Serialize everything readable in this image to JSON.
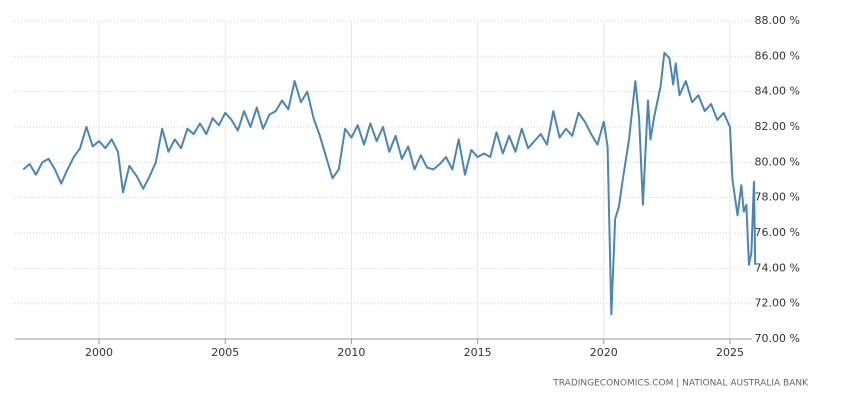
{
  "chart_data": {
    "type": "line",
    "source": "TRADINGECONOMICS.COM  |  NATIONAL AUSTRALIA BANK",
    "x": [
      1997.0,
      1997.25,
      1997.5,
      1997.75,
      1998.0,
      1998.25,
      1998.5,
      1998.75,
      1999.0,
      1999.25,
      1999.5,
      1999.75,
      2000.0,
      2000.25,
      2000.5,
      2000.75,
      2000.95,
      2001.2,
      2001.5,
      2001.75,
      2002.0,
      2002.25,
      2002.5,
      2002.75,
      2003.0,
      2003.25,
      2003.5,
      2003.75,
      2004.0,
      2004.25,
      2004.5,
      2004.75,
      2005.0,
      2005.25,
      2005.5,
      2005.75,
      2006.0,
      2006.25,
      2006.5,
      2006.75,
      2007.0,
      2007.25,
      2007.5,
      2007.75,
      2008.0,
      2008.25,
      2008.5,
      2008.75,
      2009.0,
      2009.25,
      2009.5,
      2009.75,
      2010.0,
      2010.25,
      2010.5,
      2010.75,
      2011.0,
      2011.25,
      2011.5,
      2011.75,
      2012.0,
      2012.25,
      2012.5,
      2012.75,
      2013.0,
      2013.25,
      2013.5,
      2013.75,
      2014.0,
      2014.25,
      2014.5,
      2014.75,
      2015.0,
      2015.25,
      2015.5,
      2015.75,
      2016.0,
      2016.25,
      2016.5,
      2016.75,
      2017.0,
      2017.25,
      2017.5,
      2017.75,
      2018.0,
      2018.25,
      2018.5,
      2018.75,
      2019.0,
      2019.25,
      2019.5,
      2019.75,
      2020.0,
      2020.15,
      2020.3,
      2020.45,
      2020.6,
      2020.75,
      2021.0,
      2021.25,
      2021.4,
      2021.55,
      2021.75,
      2021.85,
      2022.0,
      2022.25,
      2022.4,
      2022.6,
      2022.75,
      2022.85,
      2023.0,
      2023.25,
      2023.5,
      2023.75,
      2024.0,
      2024.25,
      2024.5,
      2024.75,
      2025.0,
      2025.1,
      2025.3,
      2025.45,
      2025.55,
      2025.65,
      2025.75,
      2025.85,
      2025.95,
      2026.0
    ],
    "series": [
      {
        "color": "#4a85b8",
        "values": [
          79.6,
          79.9,
          79.3,
          80.0,
          80.2,
          79.6,
          78.8,
          79.6,
          80.3,
          80.8,
          82.0,
          80.9,
          81.2,
          80.8,
          81.3,
          80.6,
          78.3,
          79.8,
          79.2,
          78.5,
          79.2,
          80.0,
          81.9,
          80.6,
          81.3,
          80.8,
          81.9,
          81.6,
          82.2,
          81.6,
          82.5,
          82.1,
          82.8,
          82.4,
          81.8,
          82.9,
          82.0,
          83.1,
          81.9,
          82.7,
          82.9,
          83.5,
          83.0,
          84.6,
          83.4,
          84.0,
          82.5,
          81.5,
          80.3,
          79.1,
          79.6,
          81.9,
          81.4,
          82.1,
          81.0,
          82.2,
          81.2,
          82.0,
          80.6,
          81.5,
          80.2,
          80.9,
          79.6,
          80.4,
          79.7,
          79.6,
          79.9,
          80.3,
          79.6,
          81.3,
          79.3,
          80.7,
          80.3,
          80.5,
          80.3,
          81.7,
          80.5,
          81.5,
          80.6,
          81.9,
          80.8,
          81.2,
          81.6,
          81.0,
          82.9,
          81.4,
          81.9,
          81.5,
          82.8,
          82.3,
          81.6,
          81.0,
          82.3,
          80.9,
          71.4,
          76.8,
          77.5,
          79.0,
          81.3,
          84.6,
          82.5,
          77.6,
          83.5,
          81.3,
          82.6,
          84.3,
          86.2,
          85.9,
          84.4,
          85.6,
          83.8,
          84.6,
          83.4,
          83.8,
          82.9,
          83.3,
          82.4,
          82.8,
          82.0,
          79.0,
          77.0,
          78.7,
          77.2,
          77.6,
          74.2,
          74.9,
          78.9,
          74.2
        ]
      }
    ],
    "xlim": [
      1996.67,
      2026.19
    ],
    "xticks": [
      2000,
      2005,
      2010,
      2015,
      2020,
      2025
    ],
    "ylim": [
      70,
      88
    ],
    "yticks": [
      {
        "value": 70,
        "label": "70.00 %"
      },
      {
        "value": 72,
        "label": "72.00 %"
      },
      {
        "value": 74,
        "label": "74.00 %"
      },
      {
        "value": 76,
        "label": "76.00 %"
      },
      {
        "value": 78,
        "label": "78.00 %"
      },
      {
        "value": 80,
        "label": "80.00 %"
      },
      {
        "value": 82,
        "label": "82.00 %"
      },
      {
        "value": 84,
        "label": "84.00 %"
      },
      {
        "value": 86,
        "label": "86.00 %"
      },
      {
        "value": 88,
        "label": "88.00 %"
      }
    ],
    "grid": true
  }
}
